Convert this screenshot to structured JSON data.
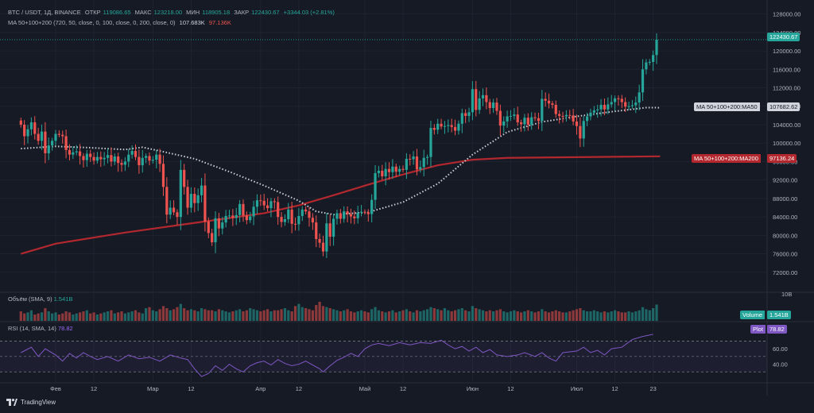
{
  "header": {
    "symbol": "BTC / USDT, 1Д, BINANCE",
    "open_label": "ОТКР",
    "open": "119086.65",
    "high_label": "МАКС",
    "high": "123218.00",
    "low_label": "МИН",
    "low": "118905.18",
    "close_label": "ЗАКР",
    "close": "122430.67",
    "change": "+3344.03 (+2.81%)"
  },
  "ma_legend": {
    "label": "MA 50+100+200 (720, 50, close, 0, 100, close, 0, 200, close, 0)",
    "ma50": "107.683K",
    "ma200": "97.136K"
  },
  "volume_legend": {
    "label": "Объём (SMA, 9)",
    "value": "1.541B"
  },
  "rsi_legend": {
    "label": "RSI (14, SMA, 14)",
    "value": "78.82"
  },
  "price_labels": {
    "last": "122430.67",
    "ma50_name": "MA 50+100+200:MA50",
    "ma50_value": "107682.62",
    "ma200_name": "MA 50+100+200:MA200",
    "ma200_value": "97136.24",
    "volume_name": "Volume",
    "volume_value": "1.541B",
    "rsi_name": "Plot",
    "rsi_value": "78.82",
    "vol_axis": "10B"
  },
  "footer": {
    "brand": "TradingView"
  },
  "colors": {
    "up": "#26a69a",
    "down": "#ef5350",
    "ma50": "#c9ccd3",
    "ma200": "#b2282e",
    "rsi": "#7e57c2",
    "bg": "#161a25"
  },
  "chart_data": {
    "type": "candlestick",
    "title": "BTC / USDT, 1Д, BINANCE",
    "yaxis_ticks": [
      72000,
      76000,
      80000,
      84000,
      88000,
      92000,
      96000,
      100000,
      104000,
      108000,
      112000,
      116000,
      120000,
      124000,
      128000
    ],
    "yaxis_tick_labels": [
      "72000.00",
      "76000.00",
      "80000.00",
      "84000.00",
      "88000.00",
      "92000.00",
      "96000.00",
      "100000.00",
      "104000.00",
      "108000.00",
      "112000.00",
      "116000.00",
      "120000.00",
      "124000.00",
      "128000.00"
    ],
    "ylim": [
      68000,
      130000
    ],
    "xaxis_ticks": [
      {
        "label": "Фев",
        "day": 0
      },
      {
        "label": "12",
        "day": 11
      },
      {
        "label": "Мар",
        "day": 28
      },
      {
        "label": "12",
        "day": 39
      },
      {
        "label": "Апр",
        "day": 59
      },
      {
        "label": "12",
        "day": 70
      },
      {
        "label": "Май",
        "day": 89
      },
      {
        "label": "12",
        "day": 100
      },
      {
        "label": "Июн",
        "day": 120
      },
      {
        "label": "12",
        "day": 131
      },
      {
        "label": "Июл",
        "day": 150
      },
      {
        "label": "12",
        "day": 161
      },
      {
        "label": "23",
        "day": 172
      }
    ],
    "first_day": -10,
    "last_day": 175,
    "closes": [
      104000,
      101500,
      103000,
      104500,
      102000,
      100500,
      102500,
      97800,
      99500,
      100500,
      102000,
      101800,
      101500,
      98500,
      97500,
      98000,
      98200,
      97200,
      96300,
      97700,
      97000,
      96200,
      97000,
      96500,
      96800,
      97400,
      96000,
      97100,
      95700,
      95300,
      96000,
      97500,
      98300,
      97000,
      95200,
      96800,
      97200,
      96200,
      96400,
      97500,
      95500,
      90500,
      84500,
      86000,
      85000,
      84000,
      94200,
      90500,
      86000,
      89000,
      87000,
      88700,
      90800,
      83000,
      80500,
      78500,
      83700,
      81500,
      82800,
      84200,
      84300,
      83800,
      84400,
      86800,
      84300,
      83300,
      84100,
      86200,
      87600,
      87500,
      86500,
      85900,
      87400,
      87200,
      84000,
      82900,
      83500,
      85600,
      82500,
      82400,
      84200,
      85600,
      85200,
      83800,
      82800,
      79200,
      78400,
      76500,
      82600,
      79700,
      83600,
      84800,
      83600,
      85200,
      84600,
      84100,
      83700,
      84900,
      85100,
      85000,
      84600,
      87700,
      93500,
      94000,
      92800,
      94400,
      93700,
      94900,
      93800,
      94400,
      94200,
      96600,
      96500,
      97100,
      94300,
      94800,
      96800,
      97000,
      103300,
      102900,
      104200,
      103600,
      103700,
      103900,
      103500,
      102700,
      104200,
      106500,
      105900,
      106700,
      111700,
      107200,
      109700,
      110400,
      108900,
      107600,
      108800,
      107000,
      103800,
      104700,
      105800,
      105900,
      106200,
      104500,
      104100,
      105500,
      104000,
      105600,
      105400,
      104800,
      109600,
      109200,
      108600,
      108300,
      106300,
      105900,
      105800,
      106100,
      106000,
      104700,
      103700,
      101000,
      104800,
      105800,
      106600,
      107100,
      107300,
      108300,
      107300,
      108400,
      108900,
      109700,
      109600,
      108900,
      107900,
      108000,
      108200,
      108800,
      111000,
      116000,
      117500,
      117600,
      119100,
      122430
    ],
    "opens_rule": "open = previous close",
    "ma50": [
      [
        -10,
        98800
      ],
      [
        0,
        99300
      ],
      [
        10,
        99000
      ],
      [
        20,
        98600
      ],
      [
        25,
        99100
      ],
      [
        30,
        98300
      ],
      [
        40,
        96600
      ],
      [
        50,
        93800
      ],
      [
        60,
        90800
      ],
      [
        70,
        87500
      ],
      [
        75,
        85200
      ],
      [
        80,
        84500
      ],
      [
        90,
        85000
      ],
      [
        100,
        87200
      ],
      [
        110,
        91200
      ],
      [
        120,
        97500
      ],
      [
        130,
        102400
      ],
      [
        140,
        104600
      ],
      [
        150,
        105800
      ],
      [
        160,
        106800
      ],
      [
        170,
        107700
      ],
      [
        174,
        107683
      ]
    ],
    "ma200": [
      [
        -10,
        76000
      ],
      [
        0,
        78200
      ],
      [
        20,
        80600
      ],
      [
        40,
        82700
      ],
      [
        60,
        84800
      ],
      [
        70,
        86500
      ],
      [
        80,
        88700
      ],
      [
        90,
        91000
      ],
      [
        100,
        93200
      ],
      [
        110,
        95200
      ],
      [
        120,
        96400
      ],
      [
        130,
        96800
      ],
      [
        150,
        96950
      ],
      [
        174,
        97136
      ]
    ],
    "volume": [
      0.9,
      0.7,
      0.8,
      1.0,
      0.6,
      0.7,
      0.8,
      1.2,
      0.9,
      0.7,
      0.8,
      0.6,
      0.7,
      0.9,
      0.8,
      0.6,
      0.7,
      0.8,
      0.9,
      1.0,
      0.7,
      0.8,
      0.6,
      0.7,
      0.8,
      0.9,
      1.0,
      0.7,
      0.8,
      0.9,
      0.7,
      0.8,
      0.9,
      1.0,
      0.8,
      0.7,
      1.2,
      1.3,
      1.0,
      0.9,
      1.1,
      1.4,
      1.2,
      1.0,
      1.1,
      1.3,
      1.6,
      1.2,
      1.0,
      1.1,
      1.0,
      0.9,
      1.2,
      1.1,
      1.0,
      1.0,
      0.9,
      1.1,
      1.0,
      0.9,
      0.8,
      0.9,
      1.0,
      1.1,
      0.9,
      1.0,
      1.2,
      1.1,
      1.0,
      0.9,
      1.0,
      1.1,
      0.9,
      1.0,
      1.0,
      1.1,
      1.2,
      1.0,
      0.9,
      1.4,
      1.6,
      1.3,
      1.2,
      1.1,
      1.0,
      1.5,
      1.8,
      1.4,
      1.3,
      1.2,
      1.1,
      1.0,
      0.9,
      1.0,
      1.1,
      0.9,
      0.8,
      0.9,
      1.0,
      0.9,
      0.8,
      1.1,
      1.3,
      1.0,
      0.9,
      0.8,
      0.9,
      1.0,
      0.8,
      0.9,
      1.0,
      1.1,
      0.9,
      0.8,
      1.0,
      0.9,
      1.0,
      1.1,
      1.3,
      1.2,
      1.1,
      1.0,
      1.2,
      1.0,
      0.9,
      1.0,
      1.1,
      1.2,
      1.0,
      0.9,
      1.4,
      1.2,
      1.1,
      1.0,
      0.9,
      1.0,
      0.9,
      1.0,
      1.1,
      0.9,
      0.8,
      0.9,
      1.0,
      0.9,
      0.8,
      0.9,
      1.0,
      0.9,
      0.8,
      0.9,
      1.1,
      0.9,
      0.8,
      0.9,
      1.0,
      0.9,
      0.8,
      0.8,
      0.9,
      1.0,
      1.1,
      1.2,
      1.0,
      0.9,
      0.9,
      1.0,
      0.9,
      0.8,
      0.9,
      0.8,
      0.9,
      1.0,
      0.9,
      0.8,
      0.8,
      0.9,
      0.8,
      0.9,
      1.0,
      1.3,
      1.1,
      1.0,
      1.2,
      1.54
    ],
    "volume_max": 3.0,
    "rsi_axis_ticks": [
      40,
      60
    ],
    "rsi_band": [
      30,
      70
    ],
    "rsi": [
      [
        -10,
        55
      ],
      [
        -7,
        62
      ],
      [
        -5,
        50
      ],
      [
        -3,
        60
      ],
      [
        0,
        52
      ],
      [
        2,
        44
      ],
      [
        4,
        54
      ],
      [
        6,
        48
      ],
      [
        8,
        55
      ],
      [
        10,
        50
      ],
      [
        12,
        46
      ],
      [
        15,
        50
      ],
      [
        18,
        44
      ],
      [
        21,
        52
      ],
      [
        24,
        47
      ],
      [
        27,
        49
      ],
      [
        30,
        44
      ],
      [
        33,
        52
      ],
      [
        36,
        48
      ],
      [
        38,
        46
      ],
      [
        40,
        34
      ],
      [
        42,
        24
      ],
      [
        44,
        28
      ],
      [
        46,
        38
      ],
      [
        48,
        32
      ],
      [
        50,
        40
      ],
      [
        52,
        34
      ],
      [
        54,
        30
      ],
      [
        56,
        38
      ],
      [
        58,
        42
      ],
      [
        60,
        44
      ],
      [
        62,
        39
      ],
      [
        64,
        46
      ],
      [
        66,
        41
      ],
      [
        68,
        38
      ],
      [
        70,
        40
      ],
      [
        72,
        44
      ],
      [
        74,
        39
      ],
      [
        76,
        34
      ],
      [
        77,
        30
      ],
      [
        79,
        38
      ],
      [
        81,
        45
      ],
      [
        83,
        49
      ],
      [
        85,
        54
      ],
      [
        87,
        50
      ],
      [
        89,
        60
      ],
      [
        91,
        65
      ],
      [
        93,
        67
      ],
      [
        96,
        64
      ],
      [
        99,
        68
      ],
      [
        102,
        65
      ],
      [
        105,
        68
      ],
      [
        108,
        67
      ],
      [
        111,
        71
      ],
      [
        113,
        65
      ],
      [
        115,
        60
      ],
      [
        117,
        63
      ],
      [
        119,
        57
      ],
      [
        121,
        62
      ],
      [
        123,
        55
      ],
      [
        125,
        59
      ],
      [
        127,
        52
      ],
      [
        130,
        50
      ],
      [
        133,
        52
      ],
      [
        135,
        55
      ],
      [
        138,
        50
      ],
      [
        140,
        55
      ],
      [
        142,
        48
      ],
      [
        144,
        44
      ],
      [
        146,
        55
      ],
      [
        148,
        56
      ],
      [
        150,
        57
      ],
      [
        152,
        62
      ],
      [
        154,
        55
      ],
      [
        156,
        58
      ],
      [
        158,
        52
      ],
      [
        160,
        60
      ],
      [
        163,
        62
      ],
      [
        166,
        72
      ],
      [
        169,
        76
      ],
      [
        172,
        78.82
      ]
    ]
  }
}
